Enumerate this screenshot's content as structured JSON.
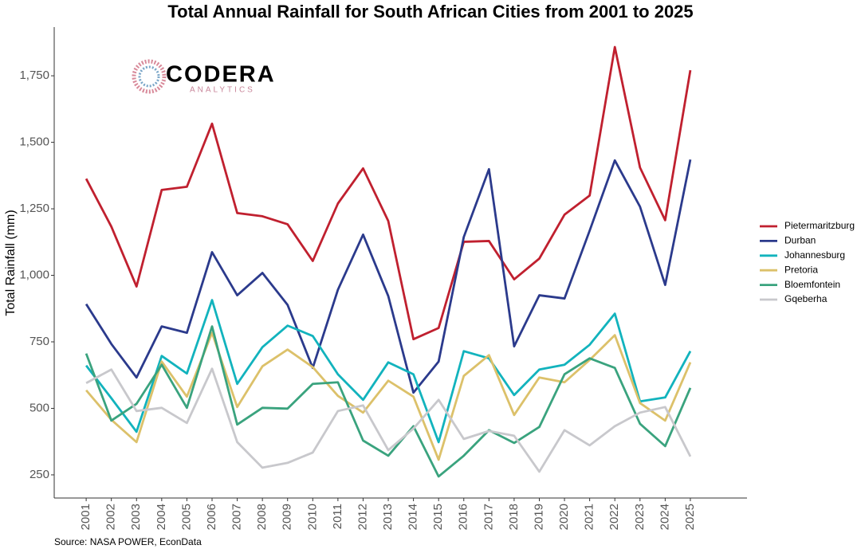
{
  "chart_data": {
    "type": "line",
    "title": "Total Annual Rainfall for South African Cities from 2001 to 2025",
    "y_label": "Total Rainfall (mm)",
    "source": "Source: NASA POWER, EconData",
    "logo": {
      "name": "CODERA",
      "tagline": "ANALYTICS"
    },
    "x": [
      2001,
      2002,
      2003,
      2004,
      2005,
      2006,
      2007,
      2008,
      2009,
      2010,
      2011,
      2012,
      2013,
      2014,
      2015,
      2016,
      2017,
      2018,
      2019,
      2020,
      2021,
      2022,
      2023,
      2024,
      2025
    ],
    "xlim": [
      1999.73,
      2027.25
    ],
    "xticks": [
      2001,
      2002,
      2003,
      2004,
      2005,
      2006,
      2007,
      2008,
      2009,
      2010,
      2011,
      2012,
      2013,
      2014,
      2015,
      2016,
      2017,
      2018,
      2019,
      2020,
      2021,
      2022,
      2023,
      2024,
      2025
    ],
    "ylim": [
      163,
      1933
    ],
    "yticks": [
      250,
      500,
      750,
      {
        "value": 1000,
        "label": "1,000"
      },
      {
        "value": 1250,
        "label": "1,250"
      },
      {
        "value": 1500,
        "label": "1,500"
      },
      {
        "value": 1750,
        "label": "1,750"
      }
    ],
    "grid": false,
    "legend": "right",
    "series": [
      {
        "name": "Pietermaritzburg",
        "color": "#c0202f",
        "values": [
          1363,
          1183,
          958,
          1321,
          1333,
          1570,
          1234,
          1222,
          1192,
          1054,
          1270,
          1402,
          1204,
          760,
          802,
          1126,
          1129,
          985,
          1063,
          1228,
          1300,
          1858,
          1405,
          1207,
          1771
        ]
      },
      {
        "name": "Durban",
        "color": "#2b3a8c",
        "values": [
          892,
          742,
          616,
          808,
          784,
          1087,
          925,
          1009,
          889,
          652,
          946,
          1153,
          922,
          559,
          676,
          1144,
          1399,
          733,
          925,
          913,
          1168,
          1432,
          1258,
          964,
          1435
        ]
      },
      {
        "name": "Johannesburg",
        "color": "#12b3bd",
        "values": [
          661,
          538,
          412,
          697,
          631,
          907,
          592,
          730,
          811,
          772,
          628,
          532,
          673,
          628,
          373,
          715,
          688,
          550,
          646,
          664,
          739,
          856,
          526,
          541,
          715
        ]
      },
      {
        "name": "Pretoria",
        "color": "#dcc16a",
        "values": [
          568,
          457,
          373,
          676,
          544,
          784,
          505,
          658,
          721,
          655,
          547,
          484,
          604,
          544,
          307,
          622,
          700,
          475,
          616,
          598,
          682,
          775,
          520,
          454,
          673
        ]
      },
      {
        "name": "Bloemfontein",
        "color": "#3aa37e",
        "values": [
          706,
          454,
          517,
          664,
          502,
          808,
          439,
          502,
          499,
          592,
          598,
          379,
          322,
          433,
          244,
          322,
          418,
          370,
          430,
          628,
          688,
          652,
          442,
          358,
          577
        ]
      },
      {
        "name": "Gqeberha",
        "color": "#c8c8cc",
        "values": [
          595,
          646,
          490,
          502,
          445,
          649,
          373,
          277,
          295,
          334,
          490,
          511,
          343,
          424,
          532,
          385,
          415,
          397,
          262,
          418,
          361,
          433,
          484,
          505,
          319
        ]
      }
    ]
  }
}
